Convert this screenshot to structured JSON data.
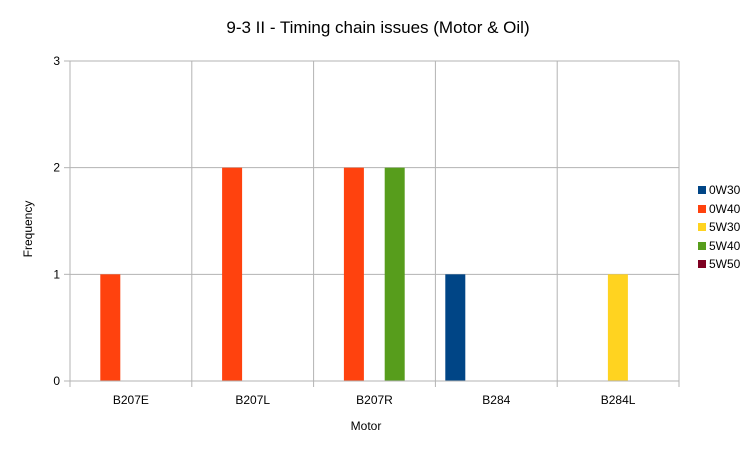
{
  "chart_data": {
    "type": "bar",
    "title": "9-3 II - Timing chain issues (Motor & Oil)",
    "xlabel": "Motor",
    "ylabel": "Frequency",
    "ylim": [
      0,
      3
    ],
    "yticks": [
      "0",
      "1",
      "2",
      "3"
    ],
    "grid": true,
    "legend_position": "right",
    "categories": [
      "B207E",
      "B207L",
      "B207R",
      "B284",
      "B284L"
    ],
    "series": [
      {
        "name": "0W30",
        "color": "#004586",
        "values": [
          0,
          0,
          0,
          1,
          0
        ]
      },
      {
        "name": "0W40",
        "color": "#ff420e",
        "values": [
          1,
          2,
          2,
          0,
          0
        ]
      },
      {
        "name": "5W30",
        "color": "#ffd320",
        "values": [
          0,
          0,
          0,
          0,
          1
        ]
      },
      {
        "name": "5W40",
        "color": "#579d1c",
        "values": [
          0,
          0,
          2,
          0,
          0
        ]
      },
      {
        "name": "5W50",
        "color": "#7e0021",
        "values": [
          0,
          0,
          0,
          0,
          0
        ]
      }
    ]
  }
}
